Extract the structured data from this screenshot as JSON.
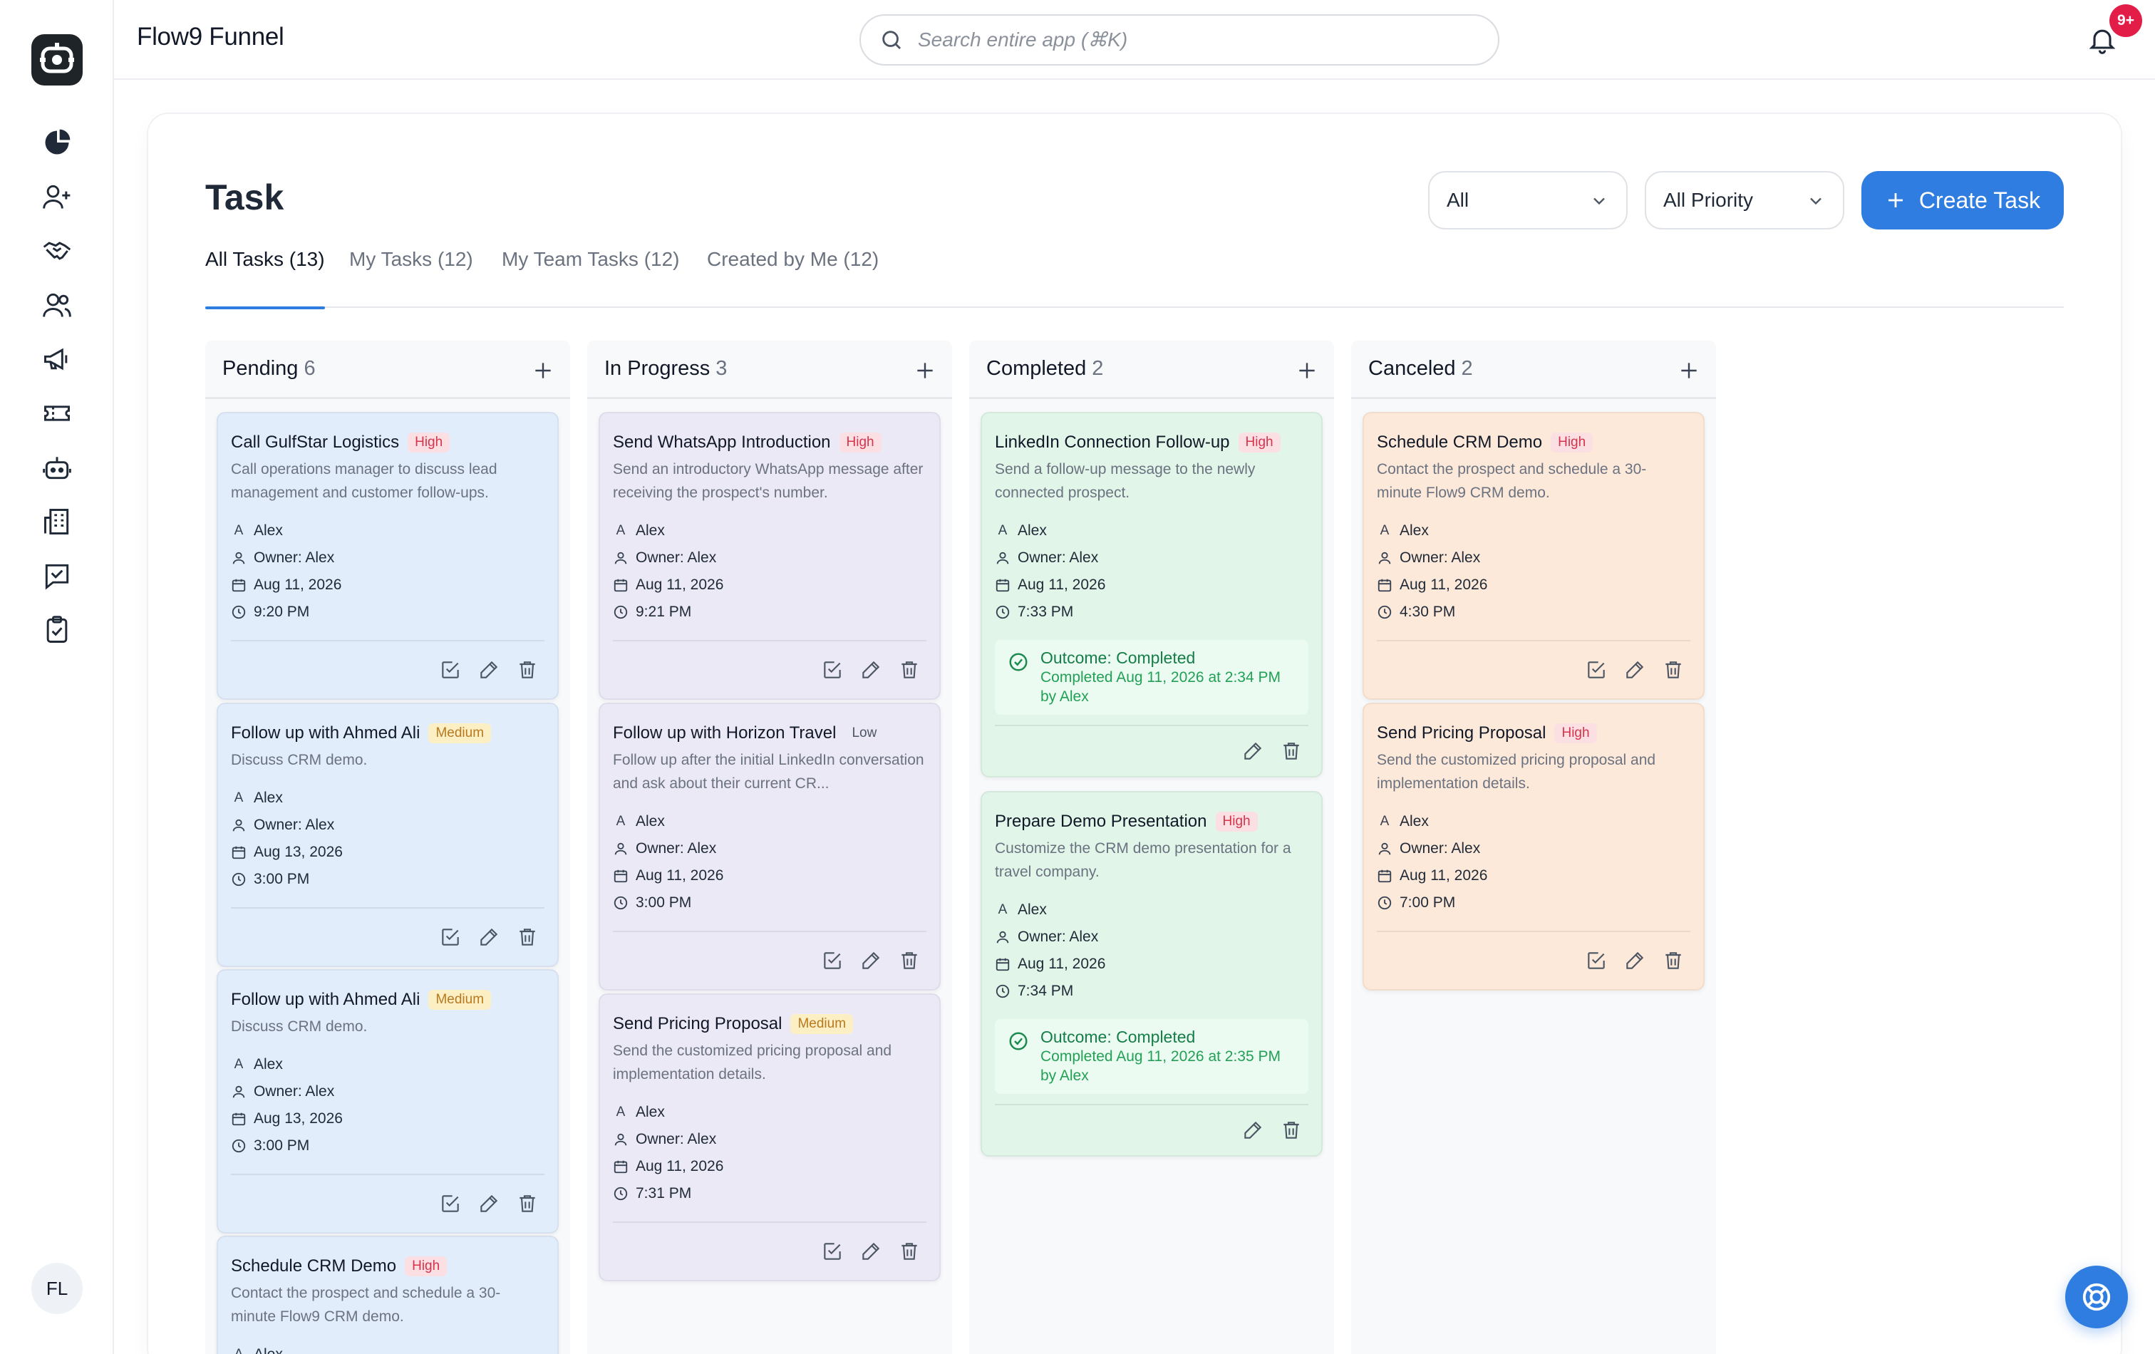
{
  "app": {
    "title": "Flow9 Funnel",
    "search_placeholder": "Search entire app (⌘K)",
    "notification_badge": "9+",
    "user_initials": "FL",
    "accent_color": "#2f7de1"
  },
  "sidebar": {
    "items": [
      {
        "name": "dashboard",
        "icon": "pie-chart-icon"
      },
      {
        "name": "leads",
        "icon": "user-plus-icon"
      },
      {
        "name": "deals",
        "icon": "handshake-icon"
      },
      {
        "name": "contacts",
        "icon": "users-icon"
      },
      {
        "name": "campaigns",
        "icon": "megaphone-icon"
      },
      {
        "name": "tickets",
        "icon": "ticket-icon"
      },
      {
        "name": "bots",
        "icon": "robot-icon"
      },
      {
        "name": "companies",
        "icon": "building-icon"
      },
      {
        "name": "messages",
        "icon": "message-check-icon"
      },
      {
        "name": "tasks",
        "icon": "clipboard-check-icon"
      }
    ]
  },
  "page": {
    "title": "Task",
    "filter_status": "All",
    "filter_priority": "All Priority",
    "create_button": "Create Task",
    "tabs": [
      "All Tasks (13)",
      "My Tasks (12)",
      "My Team Tasks (12)",
      "Created by Me (12)"
    ]
  },
  "columns": [
    {
      "name": "Pending",
      "count": "6",
      "cards": [
        {
          "title": "Call GulfStar Logistics",
          "priority": "High",
          "desc": "Call operations manager to discuss lead management and customer follow-ups.",
          "assignee_initial": "A",
          "assignee": "Alex",
          "owner": "Owner: Alex",
          "date": "Aug 11, 2026",
          "time": "9:20 PM"
        },
        {
          "title": "Follow up with Ahmed Ali",
          "priority": "Medium",
          "desc": "Discuss CRM demo.",
          "assignee_initial": "A",
          "assignee": "Alex",
          "owner": "Owner: Alex",
          "date": "Aug 13, 2026",
          "time": "3:00 PM"
        },
        {
          "title": "Follow up with Ahmed Ali",
          "priority": "Medium",
          "desc": "Discuss CRM demo.",
          "assignee_initial": "A",
          "assignee": "Alex",
          "owner": "Owner: Alex",
          "date": "Aug 13, 2026",
          "time": "3:00 PM"
        },
        {
          "title": "Schedule CRM Demo",
          "priority": "High",
          "desc": "Contact the prospect and schedule a 30-minute Flow9 CRM demo.",
          "assignee_initial": "A",
          "assignee": "Alex"
        }
      ]
    },
    {
      "name": "In Progress",
      "count": "3",
      "cards": [
        {
          "title": "Send WhatsApp Introduction",
          "priority": "High",
          "desc": "Send an introductory WhatsApp message after receiving the prospect's number.",
          "assignee_initial": "A",
          "assignee": "Alex",
          "owner": "Owner: Alex",
          "date": "Aug 11, 2026",
          "time": "9:21 PM"
        },
        {
          "title": "Follow up with Horizon Travel",
          "priority": "Low",
          "desc": "Follow up after the initial LinkedIn conversation and ask about their current CR...",
          "assignee_initial": "A",
          "assignee": "Alex",
          "owner": "Owner: Alex",
          "date": "Aug 11, 2026",
          "time": "3:00 PM"
        },
        {
          "title": "Send Pricing Proposal",
          "priority": "Medium",
          "desc": "Send the customized pricing proposal and implementation details.",
          "assignee_initial": "A",
          "assignee": "Alex",
          "owner": "Owner: Alex",
          "date": "Aug 11, 2026",
          "time": "7:31 PM"
        }
      ]
    },
    {
      "name": "Completed",
      "count": "2",
      "cards": [
        {
          "title": "LinkedIn Connection Follow-up",
          "priority": "High",
          "desc": "Send a follow-up message to the newly connected prospect.",
          "assignee_initial": "A",
          "assignee": "Alex",
          "owner": "Owner: Alex",
          "date": "Aug 11, 2026",
          "time": "7:33 PM",
          "outcome_title": "Outcome: Completed",
          "outcome_detail": "Completed Aug 11, 2026 at 2:34 PM by Alex"
        },
        {
          "title": "Prepare Demo Presentation",
          "priority": "High",
          "desc": "Customize the CRM demo presentation for a travel company.",
          "assignee_initial": "A",
          "assignee": "Alex",
          "owner": "Owner: Alex",
          "date": "Aug 11, 2026",
          "time": "7:34 PM",
          "outcome_title": "Outcome: Completed",
          "outcome_detail": "Completed Aug 11, 2026 at 2:35 PM by Alex"
        }
      ]
    },
    {
      "name": "Canceled",
      "count": "2",
      "cards": [
        {
          "title": "Schedule CRM Demo",
          "priority": "High",
          "desc": "Contact the prospect and schedule a 30-minute Flow9 CRM demo.",
          "assignee_initial": "A",
          "assignee": "Alex",
          "owner": "Owner: Alex",
          "date": "Aug 11, 2026",
          "time": "4:30 PM"
        },
        {
          "title": "Send Pricing Proposal",
          "priority": "High",
          "desc": "Send the customized pricing proposal and implementation details.",
          "assignee_initial": "A",
          "assignee": "Alex",
          "owner": "Owner: Alex",
          "date": "Aug 11, 2026",
          "time": "7:00 PM"
        }
      ]
    }
  ]
}
